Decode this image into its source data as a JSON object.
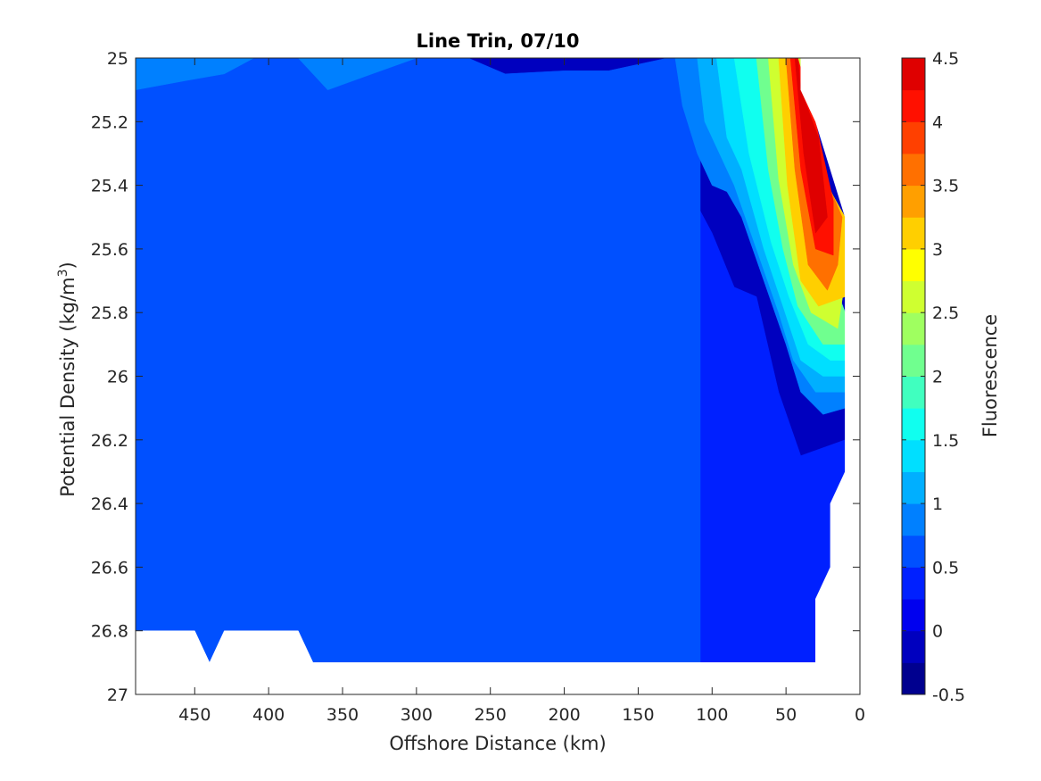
{
  "chart_data": {
    "type": "contourf",
    "title": "Line Trin, 07/10",
    "xlabel": "Offshore Distance (km)",
    "ylabel_main": "Potential Density (kg/m",
    "ylabel_sup": "3",
    "ylabel_end": ")",
    "xlim": [
      490,
      0
    ],
    "ylim": [
      25,
      27
    ],
    "x_ticks": [
      450,
      400,
      350,
      300,
      250,
      200,
      150,
      100,
      50,
      0
    ],
    "x_tick_labels": [
      "450",
      "400",
      "350",
      "300",
      "250",
      "200",
      "150",
      "100",
      "50",
      "0"
    ],
    "y_ticks": [
      25,
      25.2,
      25.4,
      25.6,
      25.8,
      26,
      26.2,
      26.4,
      26.6,
      26.8,
      27
    ],
    "y_tick_labels": [
      "25",
      "25.2",
      "25.4",
      "25.6",
      "25.8",
      "26",
      "26.2",
      "26.4",
      "26.6",
      "26.8",
      "27"
    ],
    "colorbar": {
      "label": "Fluorescence",
      "limits": [
        -0.5,
        4.5
      ],
      "tick_values": [
        -0.5,
        0,
        0.5,
        1,
        1.5,
        2,
        2.5,
        3,
        3.5,
        4,
        4.5
      ],
      "tick_labels": [
        "-0.5",
        "0",
        "0.5",
        "1",
        "1.5",
        "2",
        "2.5",
        "3",
        "3.5",
        "4",
        "4.5"
      ],
      "levels": [
        -0.5,
        -0.25,
        0,
        0.25,
        0.5,
        0.75,
        1,
        1.25,
        1.5,
        1.75,
        2,
        2.25,
        2.5,
        2.75,
        3,
        3.25,
        3.5,
        3.75,
        4,
        4.25,
        4.5
      ],
      "colors": [
        "#00008f",
        "#0000bf",
        "#0000ef",
        "#0020ff",
        "#0050ff",
        "#0080ff",
        "#00afff",
        "#00dfff",
        "#10ffef",
        "#40ffbf",
        "#70ff8f",
        "#9fff60",
        "#cfff30",
        "#ffff00",
        "#ffcf00",
        "#ff9f00",
        "#ff7000",
        "#ff4000",
        "#ff1000",
        "#df0000",
        "#af0000"
      ]
    },
    "regions": [
      {
        "level": 0.5,
        "points": [
          [
            490,
            25
          ],
          [
            265,
            25
          ],
          [
            240,
            25.05
          ],
          [
            200,
            25.04
          ],
          [
            170,
            25.04
          ],
          [
            150,
            25.02
          ],
          [
            130,
            25
          ],
          [
            108,
            25
          ],
          [
            108,
            27
          ],
          [
            490,
            27
          ]
        ]
      },
      {
        "level": 0.25,
        "points": [
          [
            490,
            25.3
          ],
          [
            470,
            25.32
          ],
          [
            420,
            25.28
          ],
          [
            405,
            25.18
          ],
          [
            390,
            25.16
          ],
          [
            360,
            25.35
          ],
          [
            320,
            25.3
          ],
          [
            290,
            25.28
          ],
          [
            270,
            25.38
          ],
          [
            220,
            25.55
          ],
          [
            190,
            25.5
          ],
          [
            160,
            25.55
          ],
          [
            140,
            25.45
          ],
          [
            115,
            25.42
          ],
          [
            100,
            25.55
          ],
          [
            85,
            25.72
          ],
          [
            70,
            25.75
          ],
          [
            55,
            26.05
          ],
          [
            40,
            26.25
          ],
          [
            10,
            26.2
          ],
          [
            10,
            26.3
          ],
          [
            20,
            26.4
          ],
          [
            20,
            26.6
          ],
          [
            30,
            26.7
          ],
          [
            30,
            26.9
          ],
          [
            490,
            26.9
          ]
        ]
      },
      {
        "level": 0,
        "points": [
          [
            490,
            26
          ],
          [
            470,
            25.98
          ],
          [
            450,
            25.94
          ],
          [
            425,
            26.0
          ],
          [
            415,
            25.97
          ],
          [
            400,
            25.96
          ],
          [
            390,
            25.88
          ],
          [
            375,
            25.92
          ],
          [
            360,
            26.08
          ],
          [
            345,
            26.25
          ],
          [
            360,
            26.4
          ],
          [
            347,
            26.5
          ],
          [
            360,
            26.6
          ],
          [
            370,
            26.7
          ],
          [
            375,
            26.8
          ],
          [
            490,
            26.8
          ]
        ]
      },
      {
        "level": 0.75,
        "points": [
          [
            490,
            25.1
          ],
          [
            455,
            25.07
          ],
          [
            430,
            25.05
          ],
          [
            410,
            25.0
          ],
          [
            380,
            25.0
          ],
          [
            360,
            25.1
          ],
          [
            330,
            25.05
          ],
          [
            300,
            25.0
          ],
          [
            490,
            25.0
          ]
        ]
      },
      {
        "level": 0.75,
        "points": [
          [
            125,
            25
          ],
          [
            120,
            25.15
          ],
          [
            110,
            25.3
          ],
          [
            100,
            25.4
          ],
          [
            90,
            25.42
          ],
          [
            80,
            25.5
          ],
          [
            65,
            25.7
          ],
          [
            50,
            25.9
          ],
          [
            40,
            26.05
          ],
          [
            25,
            26.12
          ],
          [
            10,
            26.1
          ],
          [
            10,
            25.8
          ],
          [
            30,
            25.55
          ],
          [
            40,
            25
          ],
          [
            125,
            25
          ]
        ]
      },
      {
        "level": 1,
        "points": [
          [
            110,
            25
          ],
          [
            105,
            25.2
          ],
          [
            95,
            25.3
          ],
          [
            85,
            25.4
          ],
          [
            70,
            25.6
          ],
          [
            55,
            25.8
          ],
          [
            45,
            25.95
          ],
          [
            30,
            26.05
          ],
          [
            10,
            26.05
          ],
          [
            10,
            25.8
          ],
          [
            30,
            25.55
          ],
          [
            40,
            25
          ],
          [
            110,
            25
          ]
        ]
      },
      {
        "level": 1.25,
        "points": [
          [
            97,
            25
          ],
          [
            90,
            25.25
          ],
          [
            80,
            25.35
          ],
          [
            65,
            25.6
          ],
          [
            52,
            25.78
          ],
          [
            40,
            25.95
          ],
          [
            25,
            26.0
          ],
          [
            10,
            26.0
          ],
          [
            10,
            25.8
          ],
          [
            30,
            25.55
          ],
          [
            40,
            25
          ],
          [
            97,
            25
          ]
        ]
      },
      {
        "level": 1.5,
        "points": [
          [
            85,
            25
          ],
          [
            75,
            25.3
          ],
          [
            60,
            25.58
          ],
          [
            48,
            25.75
          ],
          [
            35,
            25.9
          ],
          [
            20,
            25.95
          ],
          [
            10,
            25.95
          ],
          [
            10,
            25.8
          ],
          [
            30,
            25.55
          ],
          [
            40,
            25
          ],
          [
            85,
            25
          ]
        ]
      },
      {
        "level": 2,
        "points": [
          [
            70,
            25
          ],
          [
            62,
            25.35
          ],
          [
            52,
            25.6
          ],
          [
            42,
            25.78
          ],
          [
            25,
            25.9
          ],
          [
            10,
            25.9
          ],
          [
            10,
            25.8
          ],
          [
            30,
            25.55
          ],
          [
            40,
            25
          ],
          [
            70,
            25
          ]
        ]
      },
      {
        "level": 2.5,
        "points": [
          [
            62,
            25
          ],
          [
            55,
            25.38
          ],
          [
            45,
            25.65
          ],
          [
            33,
            25.8
          ],
          [
            15,
            25.85
          ],
          [
            10,
            25.7
          ],
          [
            30,
            25.55
          ],
          [
            40,
            25
          ],
          [
            62,
            25
          ]
        ]
      },
      {
        "level": 3,
        "points": [
          [
            55,
            25
          ],
          [
            49,
            25.4
          ],
          [
            40,
            25.7
          ],
          [
            28,
            25.78
          ],
          [
            10,
            25.75
          ],
          [
            10,
            25.5
          ],
          [
            40,
            25.25
          ],
          [
            44,
            25
          ],
          [
            55,
            25
          ]
        ]
      },
      {
        "level": 3.5,
        "points": [
          [
            50,
            25
          ],
          [
            44,
            25.35
          ],
          [
            35,
            25.65
          ],
          [
            22,
            25.73
          ],
          [
            15,
            25.65
          ],
          [
            12,
            25.5
          ],
          [
            35,
            25.25
          ],
          [
            42,
            25
          ],
          [
            50,
            25
          ]
        ]
      },
      {
        "level": 4,
        "points": [
          [
            47,
            25
          ],
          [
            40,
            25.35
          ],
          [
            30,
            25.6
          ],
          [
            18,
            25.62
          ],
          [
            18,
            25.45
          ],
          [
            30,
            25.2
          ],
          [
            42,
            25
          ],
          [
            47,
            25
          ]
        ]
      },
      {
        "level": 4.25,
        "points": [
          [
            44,
            25
          ],
          [
            38,
            25.3
          ],
          [
            30,
            25.55
          ],
          [
            22,
            25.5
          ],
          [
            28,
            25.25
          ],
          [
            40,
            25.1
          ],
          [
            42,
            25
          ],
          [
            44,
            25
          ]
        ]
      }
    ],
    "blank_regions": [
      {
        "points": [
          [
            490,
            26.8
          ],
          [
            450,
            26.8
          ],
          [
            440,
            26.9
          ],
          [
            430,
            26.8
          ],
          [
            380,
            26.8
          ],
          [
            370,
            26.9
          ],
          [
            30,
            26.9
          ],
          [
            30,
            26.7
          ],
          [
            20,
            26.6
          ],
          [
            20,
            26.4
          ],
          [
            10,
            26.3
          ],
          [
            0,
            26.3
          ],
          [
            0,
            27
          ],
          [
            490,
            27
          ]
        ]
      },
      {
        "points": [
          [
            40,
            25
          ],
          [
            40,
            25.1
          ],
          [
            30,
            25.2
          ],
          [
            10,
            25.5
          ],
          [
            0,
            25.5
          ],
          [
            0,
            25
          ]
        ]
      },
      {
        "points": [
          [
            10,
            25.5
          ],
          [
            10,
            26.3
          ],
          [
            0,
            26.3
          ],
          [
            0,
            25.5
          ]
        ]
      }
    ]
  }
}
